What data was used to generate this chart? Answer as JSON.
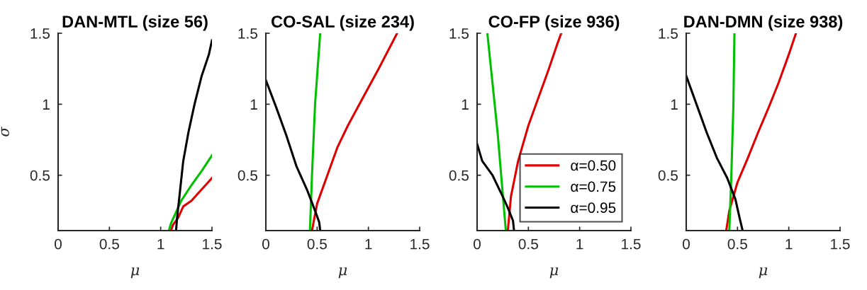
{
  "chart_data": [
    {
      "type": "line",
      "title": "DAN-MTL (size 56)",
      "xlabel": "μ",
      "ylabel": "σ",
      "xlim": [
        0,
        1.5
      ],
      "ylim": [
        0.11,
        1.5
      ],
      "xticks": [
        0,
        0.5,
        1,
        1.5
      ],
      "yticks": [
        0.5,
        1,
        1.5
      ],
      "grid": false,
      "legend": false,
      "series": [
        {
          "color": "#e00000",
          "x": [
            1.1,
            1.12,
            1.17,
            1.22,
            1.3,
            1.4,
            1.5
          ],
          "values": [
            0.11,
            0.15,
            0.2,
            0.28,
            0.32,
            0.4,
            0.48
          ]
        },
        {
          "color": "#00c000",
          "x": [
            1.08,
            1.1,
            1.15,
            1.2,
            1.3,
            1.4,
            1.5
          ],
          "values": [
            0.11,
            0.16,
            0.24,
            0.32,
            0.43,
            0.53,
            0.64
          ]
        },
        {
          "color": "#000000",
          "x": [
            1.15,
            1.16,
            1.19,
            1.22,
            1.27,
            1.33,
            1.4,
            1.47,
            1.5
          ],
          "values": [
            0.11,
            0.2,
            0.4,
            0.6,
            0.8,
            1.0,
            1.2,
            1.35,
            1.45
          ]
        }
      ]
    },
    {
      "type": "line",
      "title": "CO-SAL (size 234)",
      "xlabel": "μ",
      "xlim": [
        0,
        1.5
      ],
      "ylim": [
        0.11,
        1.5
      ],
      "xticks": [
        0,
        0.5,
        1,
        1.5
      ],
      "yticks": [
        0.5,
        1,
        1.5
      ],
      "grid": false,
      "legend": false,
      "series": [
        {
          "color": "#e00000",
          "x": [
            0.45,
            0.5,
            0.6,
            0.7,
            0.8,
            0.95,
            1.1,
            1.28
          ],
          "values": [
            0.11,
            0.3,
            0.5,
            0.7,
            0.85,
            1.05,
            1.25,
            1.5
          ]
        },
        {
          "color": "#00c000",
          "x": [
            0.43,
            0.45,
            0.48,
            0.53
          ],
          "values": [
            0.11,
            0.5,
            1.0,
            1.5
          ]
        },
        {
          "color": "#000000",
          "x": [
            0,
            0.1,
            0.2,
            0.3,
            0.4,
            0.48,
            0.52,
            0.53
          ],
          "values": [
            1.17,
            0.98,
            0.78,
            0.56,
            0.4,
            0.25,
            0.17,
            0.11
          ]
        }
      ]
    },
    {
      "type": "line",
      "title": "CO-FP (size 936)",
      "xlabel": "μ",
      "xlim": [
        0,
        1.5
      ],
      "ylim": [
        0.11,
        1.5
      ],
      "xticks": [
        0,
        0.5,
        1,
        1.5
      ],
      "yticks": [
        0.5,
        1,
        1.5
      ],
      "grid": false,
      "legend": "bottom right",
      "series": [
        {
          "name": "α=0.50",
          "color": "#e00000",
          "x": [
            0.3,
            0.33,
            0.4,
            0.5,
            0.6,
            0.7,
            0.78,
            0.82
          ],
          "values": [
            0.11,
            0.35,
            0.6,
            0.85,
            1.05,
            1.25,
            1.42,
            1.5
          ]
        },
        {
          "name": "α=0.75",
          "color": "#00c000",
          "x": [
            0.1,
            0.2,
            0.28
          ],
          "values": [
            1.5,
            0.8,
            0.11
          ]
        },
        {
          "name": "α=0.95",
          "color": "#000000",
          "x": [
            0,
            0.05,
            0.15,
            0.25,
            0.3,
            0.35,
            0.36
          ],
          "values": [
            0.72,
            0.6,
            0.5,
            0.35,
            0.27,
            0.18,
            0.11
          ]
        }
      ]
    },
    {
      "type": "line",
      "title": "DAN-DMN (size 938)",
      "xlabel": "μ",
      "xlim": [
        0,
        1.5
      ],
      "ylim": [
        0.11,
        1.5
      ],
      "xticks": [
        0,
        0.5,
        1,
        1.5
      ],
      "yticks": [
        0.5,
        1,
        1.5
      ],
      "grid": false,
      "legend": false,
      "series": [
        {
          "color": "#e00000",
          "x": [
            0.39,
            0.42,
            0.5,
            0.6,
            0.7,
            0.8,
            0.9,
            1.0,
            1.07
          ],
          "values": [
            0.11,
            0.25,
            0.45,
            0.62,
            0.8,
            0.97,
            1.15,
            1.35,
            1.5
          ]
        },
        {
          "color": "#00c000",
          "x": [
            0.42,
            0.44,
            0.46,
            0.47
          ],
          "values": [
            0.11,
            0.5,
            1.0,
            1.5
          ]
        },
        {
          "color": "#000000",
          "x": [
            0,
            0.1,
            0.2,
            0.3,
            0.4,
            0.48,
            0.52,
            0.55
          ],
          "values": [
            1.2,
            1.0,
            0.8,
            0.62,
            0.48,
            0.33,
            0.2,
            0.11
          ]
        }
      ]
    }
  ]
}
